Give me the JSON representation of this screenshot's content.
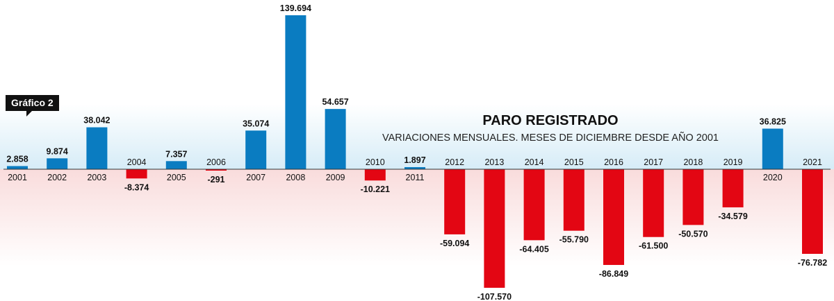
{
  "badge": "Gráfico 2",
  "colors": {
    "positive": "#0a7cc1",
    "negative": "#e30613",
    "text": "#111111",
    "axis": "#333333"
  },
  "chart_data": {
    "type": "bar",
    "title": "PARO REGISTRADO",
    "subtitle": "VARIACIONES MENSUALES. MESES DE DICIEMBRE DESDE AÑO 2001",
    "categories": [
      "2001",
      "2002",
      "2003",
      "2004",
      "2005",
      "2006",
      "2007",
      "2008",
      "2009",
      "2010",
      "2011",
      "2012",
      "2013",
      "2014",
      "2015",
      "2016",
      "2017",
      "2018",
      "2019",
      "2020",
      "2021"
    ],
    "values": [
      2858,
      9874,
      38042,
      -8374,
      7357,
      -291,
      35074,
      139694,
      54657,
      -10221,
      1897,
      -59094,
      -107570,
      -64405,
      -55790,
      -86849,
      -61500,
      -50570,
      -34579,
      36825,
      -76782
    ],
    "value_labels": [
      "2.858",
      "9.874",
      "38.042",
      "-8.374",
      "7.357",
      "-291",
      "35.074",
      "139.694",
      "54.657",
      "-10.221",
      "1.897",
      "-59.094",
      "-107.570",
      "-64.405",
      "-55.790",
      "-86.849",
      "-61.500",
      "-50.570",
      "-34.579",
      "36.825",
      "-76.782"
    ],
    "ylim": [
      -110000,
      140000
    ],
    "grid": false,
    "legend": "none"
  }
}
